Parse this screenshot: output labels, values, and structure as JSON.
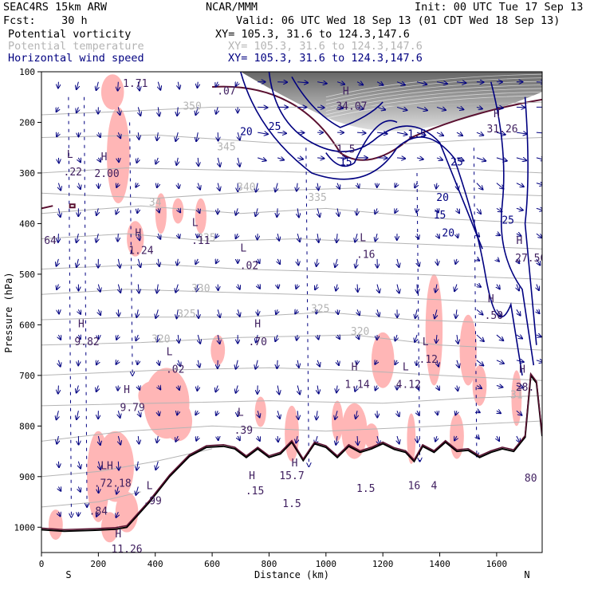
{
  "header": {
    "model": "SEAC4RS 15km ARW",
    "org": "NCAR/MMM",
    "init": "Init: 00 UTC Tue 17 Sep 13",
    "fcst": "Fcst:    30 h",
    "valid": "Valid: 06 UTC Wed 18 Sep 13 (01 CDT Wed 18 Sep 13)",
    "fields": [
      {
        "name": "Potential vorticity",
        "xy": "XY= 105.3, 31.6 to 124.3,147.6",
        "color": "#000000"
      },
      {
        "name": "Potential temperature",
        "xy": "XY= 105.3, 31.6 to 124.3,147.6",
        "color": "#b4b4b4"
      },
      {
        "name": "Horizontal wind speed",
        "xy": "XY= 105.3, 31.6 to 124.3,147.6",
        "color": "#000080"
      }
    ]
  },
  "chart_data": {
    "type": "cross-section",
    "xlabel": "Distance (km)",
    "ylabel": "Pressure (hPa)",
    "xlim": [
      0,
      1760
    ],
    "ylim": [
      1050,
      100
    ],
    "x_ticks": [
      0,
      200,
      400,
      600,
      800,
      1000,
      1200,
      1400,
      1600
    ],
    "y_ticks": [
      100,
      200,
      300,
      400,
      500,
      600,
      700,
      800,
      900,
      1000
    ],
    "end_labels": {
      "left": "S",
      "right": "N"
    },
    "colors": {
      "pv_shade": "#ffb6b6",
      "theta": "#b4b4b4",
      "wind": "#000080",
      "terrain": "#000000",
      "pv_contour": "#5a1030"
    },
    "theta_labels": [
      {
        "text": "350",
        "x": 530,
        "p": 175
      },
      {
        "text": "345",
        "x": 650,
        "p": 255
      },
      {
        "text": "340",
        "x": 720,
        "p": 335
      },
      {
        "text": "335",
        "x": 970,
        "p": 355
      },
      {
        "text": "34",
        "x": 400,
        "p": 365
      },
      {
        "text": "335",
        "x": 580,
        "p": 435
      },
      {
        "text": "330",
        "x": 560,
        "p": 535
      },
      {
        "text": "325",
        "x": 510,
        "p": 585
      },
      {
        "text": "325",
        "x": 980,
        "p": 575
      },
      {
        "text": "320",
        "x": 420,
        "p": 635
      },
      {
        "text": "320",
        "x": 1120,
        "p": 620
      },
      {
        "text": "31",
        "x": 1670,
        "p": 745
      }
    ],
    "wind_labels": [
      {
        "text": "20",
        "x": 720,
        "p": 225
      },
      {
        "text": "25",
        "x": 820,
        "p": 215
      },
      {
        "text": "15",
        "x": 1070,
        "p": 285
      },
      {
        "text": "1.5",
        "x": 1320,
        "p": 230
      },
      {
        "text": "25",
        "x": 1460,
        "p": 285
      },
      {
        "text": "20",
        "x": 1410,
        "p": 355
      },
      {
        "text": "15",
        "x": 1400,
        "p": 390
      },
      {
        "text": "20",
        "x": 1430,
        "p": 425
      },
      {
        "text": "25",
        "x": 1640,
        "p": 400
      }
    ],
    "extrema": [
      {
        "text": "L",
        "x": 100,
        "p": 270
      },
      {
        "text": ".22",
        "x": 110,
        "p": 305
      },
      {
        "text": "H",
        "x": 220,
        "p": 275
      },
      {
        "text": "2.00",
        "x": 230,
        "p": 308
      },
      {
        "text": "1.71",
        "x": 330,
        "p": 130
      },
      {
        "text": ".07",
        "x": 650,
        "p": 145
      },
      {
        "text": "H",
        "x": 1070,
        "p": 145
      },
      {
        "text": "34.07",
        "x": 1090,
        "p": 175
      },
      {
        "text": "1.5",
        "x": 1070,
        "p": 260
      },
      {
        "text": "H",
        "x": 1600,
        "p": 190
      },
      {
        "text": "31.26",
        "x": 1620,
        "p": 220
      },
      {
        "text": "L",
        "x": 540,
        "p": 405
      },
      {
        "text": ".11",
        "x": 560,
        "p": 440
      },
      {
        "text": "H",
        "x": 340,
        "p": 425
      },
      {
        "text": "1.24",
        "x": 350,
        "p": 460
      },
      {
        "text": "L",
        "x": 710,
        "p": 455
      },
      {
        "text": ".02",
        "x": 730,
        "p": 490
      },
      {
        "text": "L",
        "x": 1130,
        "p": 435
      },
      {
        "text": ".16",
        "x": 1140,
        "p": 468
      },
      {
        "text": ".64",
        "x": 20,
        "p": 440
      },
      {
        "text": "H",
        "x": 1680,
        "p": 440
      },
      {
        "text": "27.56",
        "x": 1720,
        "p": 475
      },
      {
        "text": "H",
        "x": 1580,
        "p": 555
      },
      {
        "text": ".50",
        "x": 1590,
        "p": 588
      },
      {
        "text": "H",
        "x": 140,
        "p": 605
      },
      {
        "text": "9.82",
        "x": 160,
        "p": 640
      },
      {
        "text": "H",
        "x": 760,
        "p": 605
      },
      {
        "text": ".70",
        "x": 760,
        "p": 640
      },
      {
        "text": "L",
        "x": 1350,
        "p": 640
      },
      {
        "text": ".12",
        "x": 1360,
        "p": 675
      },
      {
        "text": "L",
        "x": 450,
        "p": 660
      },
      {
        "text": ".02",
        "x": 470,
        "p": 695
      },
      {
        "text": "H",
        "x": 1100,
        "p": 690
      },
      {
        "text": "1.14",
        "x": 1110,
        "p": 725
      },
      {
        "text": "L",
        "x": 1280,
        "p": 690
      },
      {
        "text": "4.12",
        "x": 1290,
        "p": 725
      },
      {
        "text": "H",
        "x": 1690,
        "p": 695
      },
      {
        "text": "28.",
        "x": 1700,
        "p": 730
      },
      {
        "text": "H",
        "x": 300,
        "p": 735
      },
      {
        "text": "9.79",
        "x": 320,
        "p": 770
      },
      {
        "text": "L",
        "x": 700,
        "p": 780
      },
      {
        "text": ".39",
        "x": 710,
        "p": 815
      },
      {
        "text": "LH",
        "x": 230,
        "p": 885
      },
      {
        "text": ".72.18",
        "x": 250,
        "p": 920
      },
      {
        "text": "L",
        "x": 380,
        "p": 925
      },
      {
        "text": ".99",
        "x": 390,
        "p": 955
      },
      {
        "text": "H",
        "x": 740,
        "p": 905
      },
      {
        "text": ".15",
        "x": 750,
        "p": 935
      },
      {
        "text": "H",
        "x": 890,
        "p": 880
      },
      {
        "text": "15.7",
        "x": 880,
        "p": 905
      },
      {
        "text": "1.5",
        "x": 880,
        "p": 960
      },
      {
        "text": "1.5",
        "x": 1140,
        "p": 930
      },
      {
        "text": "16",
        "x": 1310,
        "p": 925
      },
      {
        "text": "4",
        "x": 1380,
        "p": 925
      },
      {
        "text": "80",
        "x": 1720,
        "p": 910
      },
      {
        "text": ".84",
        "x": 200,
        "p": 975
      },
      {
        "text": "H",
        "x": 270,
        "p": 1020
      },
      {
        "text": "11.26",
        "x": 300,
        "p": 1050
      }
    ]
  }
}
